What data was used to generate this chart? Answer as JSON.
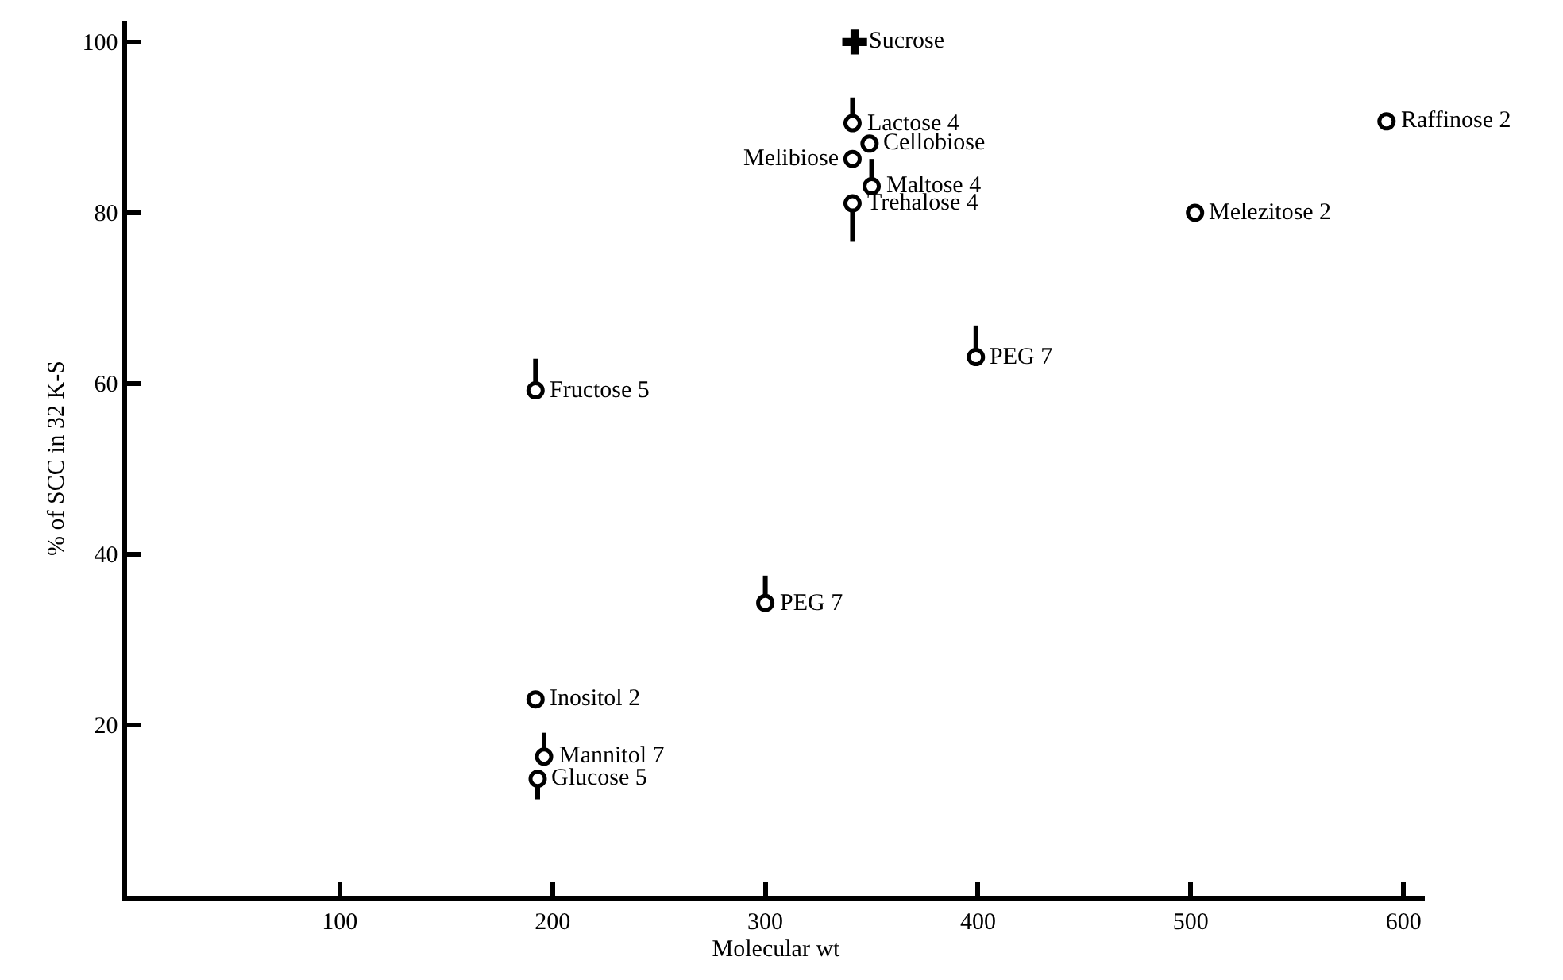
{
  "chart_data": {
    "type": "scatter",
    "xlabel": "Molecular wt",
    "ylabel": "% of SCC in 32 K-S",
    "xlim": [
      0,
      610
    ],
    "xticks": [
      100,
      200,
      300,
      400,
      500,
      600
    ],
    "ylim": [
      0,
      102.5
    ],
    "yticks": [
      20,
      40,
      60,
      80,
      100
    ],
    "grid": false,
    "series": [
      {
        "marker": "cross",
        "color": "#000000",
        "x": [
          342
        ],
        "values": [
          100
        ]
      },
      {
        "marker": "circle",
        "color": "#000000",
        "x": [
          341,
          349,
          341,
          350,
          341,
          592,
          502,
          399,
          192,
          300,
          192,
          196,
          193
        ],
        "values": [
          90.5,
          88.1,
          86.3,
          83.1,
          81.1,
          90.7,
          80,
          63.1,
          59.2,
          34.3,
          23,
          16.3,
          13.7
        ],
        "errors": [
          [
            90.5,
            93.5
          ],
          null,
          null,
          [
            83.1,
            86.3
          ],
          [
            76.6,
            81.1
          ],
          null,
          null,
          [
            63.1,
            66.8
          ],
          [
            59.2,
            62.9
          ],
          [
            34.3,
            37.5
          ],
          null,
          [
            16.3,
            19.1
          ],
          [
            11.3,
            13.7
          ]
        ]
      }
    ],
    "annotations": [
      {
        "text": "Sucrose",
        "x": 342,
        "y": 100
      },
      {
        "text": "Lactose 4",
        "x": 341,
        "y": 90.5
      },
      {
        "text": "Cellobiose",
        "x": 349,
        "y": 88.1
      },
      {
        "text": "Melibiose",
        "x": 341,
        "y": 86.3
      },
      {
        "text": "Maltose 4",
        "x": 350,
        "y": 83.1
      },
      {
        "text": "Trehalose 4",
        "x": 341,
        "y": 81.1
      },
      {
        "text": "Raffinose 2",
        "x": 592,
        "y": 90.7
      },
      {
        "text": "Melezitose 2",
        "x": 502,
        "y": 80
      },
      {
        "text": "PEG 7",
        "x": 399,
        "y": 63.1
      },
      {
        "text": "Fructose 5",
        "x": 192,
        "y": 59.2
      },
      {
        "text": "PEG 7",
        "x": 300,
        "y": 34.3
      },
      {
        "text": "Inositol 2",
        "x": 192,
        "y": 23
      },
      {
        "text": "Mannitol 7",
        "x": 196,
        "y": 16.3
      },
      {
        "text": "Glucose 5",
        "x": 193,
        "y": 13.7
      }
    ]
  }
}
